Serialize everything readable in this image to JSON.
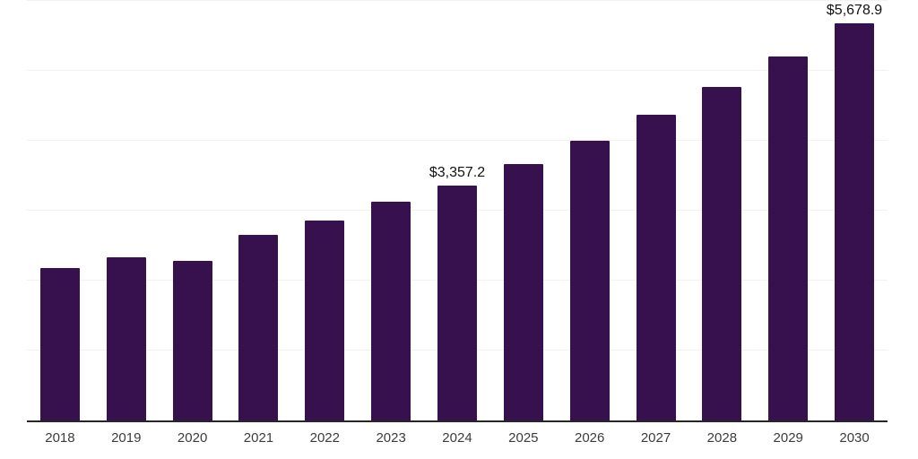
{
  "chart_data": {
    "type": "bar",
    "title": "",
    "xlabel": "",
    "ylabel": "",
    "categories": [
      "2018",
      "2019",
      "2020",
      "2021",
      "2022",
      "2023",
      "2024",
      "2025",
      "2026",
      "2027",
      "2028",
      "2029",
      "2030"
    ],
    "values": [
      2176,
      2331,
      2279,
      2653,
      2859,
      3129,
      3357.2,
      3664.7,
      4000.4,
      4366.8,
      4766.8,
      5203.4,
      5678.9
    ],
    "value_labels": {
      "2024": "$3,357.2",
      "2030": "$5,678.9"
    },
    "ylim": [
      0,
      6000
    ],
    "gridline_interval": 1000,
    "grid": true,
    "y_tick_labels_visible": false,
    "legend": "none",
    "colors": {
      "bar": "#36114e",
      "axis": "#262626",
      "gridline": "#f2f2f2",
      "tick_label": "#3c3c3c",
      "value_label": "#111111",
      "background": "#ffffff"
    }
  }
}
